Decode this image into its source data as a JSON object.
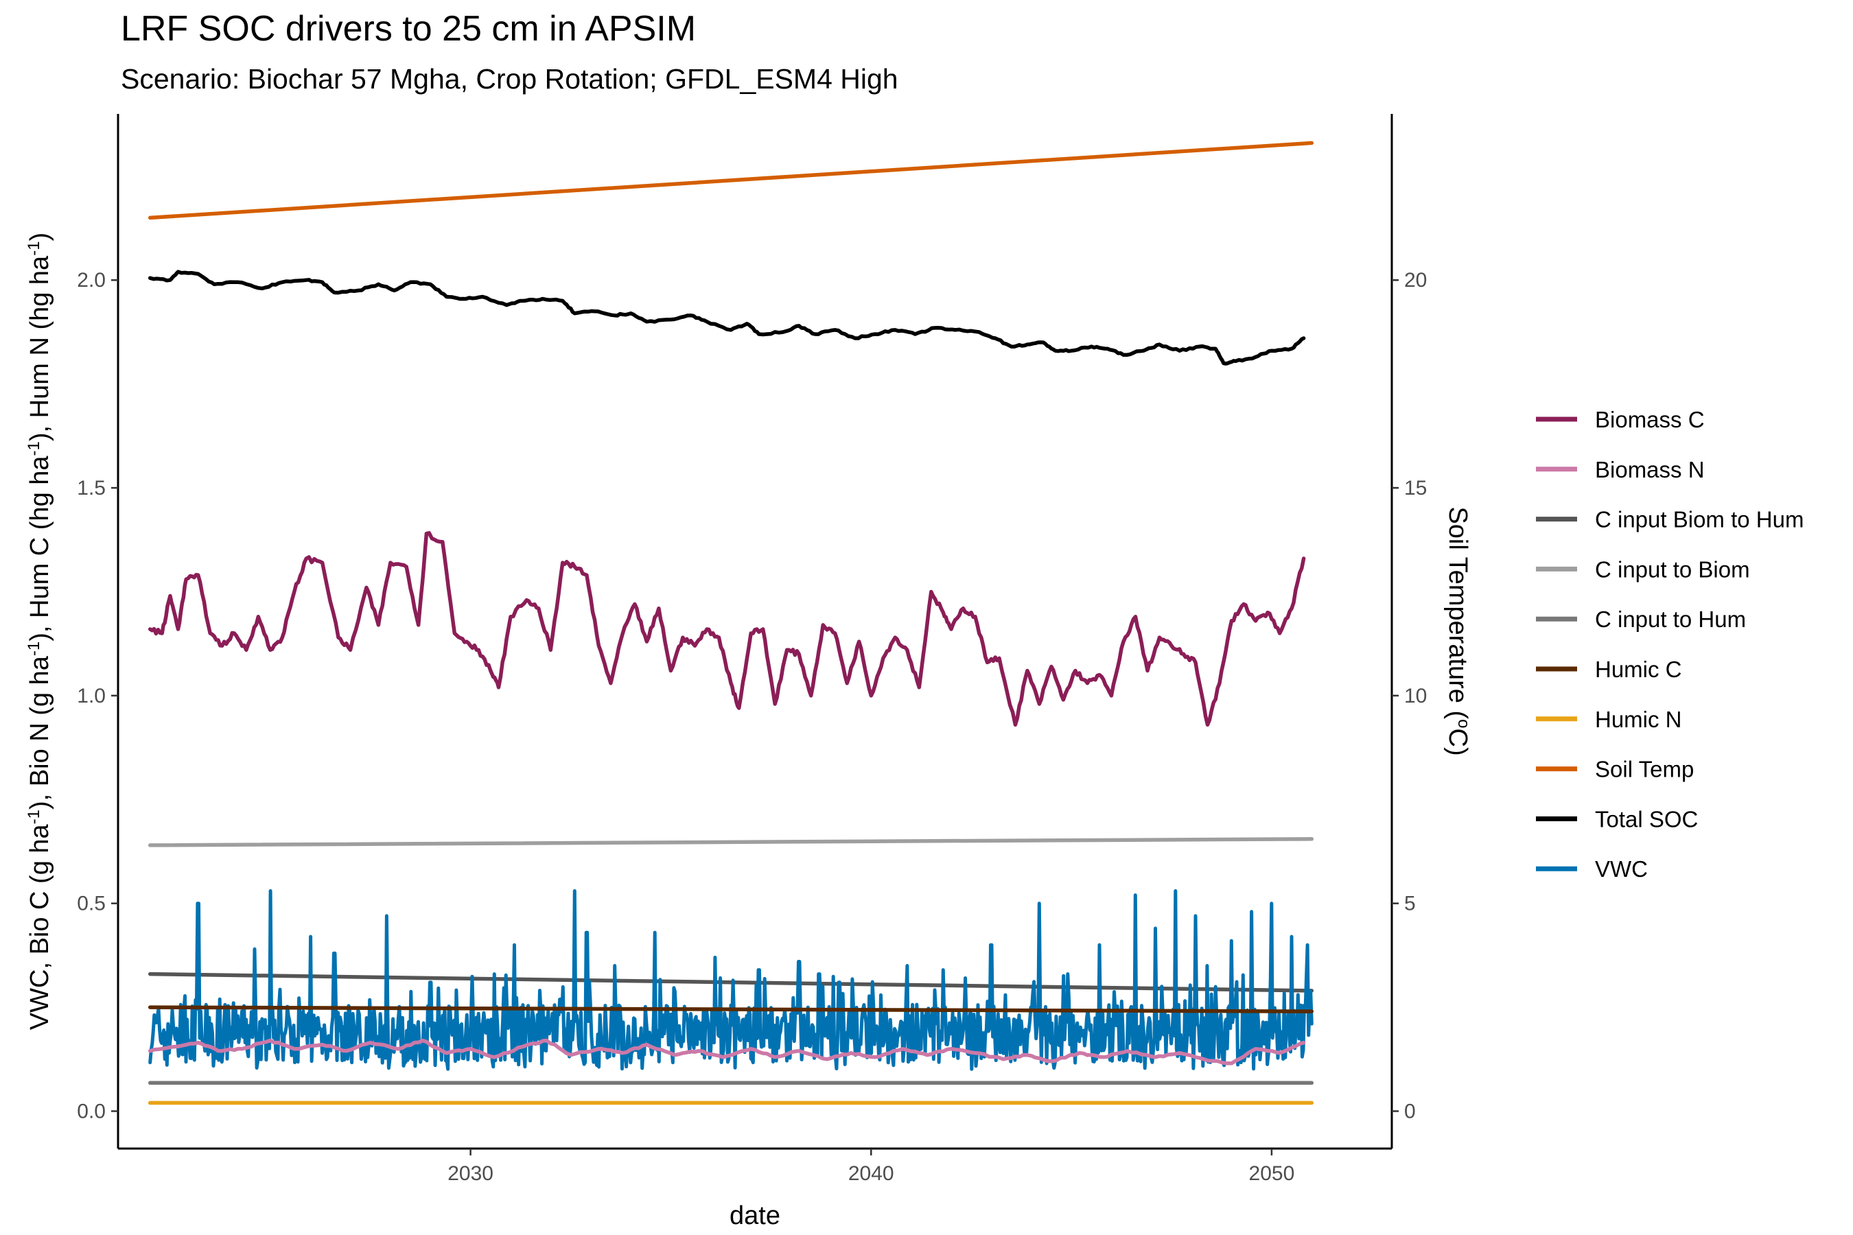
{
  "chart_data": {
    "type": "line",
    "title": "LRF SOC drivers to 25 cm in APSIM",
    "subtitle": "Scenario: Biochar 57 Mgha, Crop Rotation; GFDL_ESM4 High",
    "xlabel": "date",
    "ylabel_left": {
      "main": "VWC, Bio C (g ha",
      "parts": [
        "VWC, Bio C (g ha",
        "-1",
        "), Bio N (g ha",
        "-1",
        "), Hum C (hg ha",
        "-1",
        "), Hum N (hg ha",
        "-1",
        ")"
      ]
    },
    "ylabel_right": {
      "parts": [
        "Soil Temperature (",
        "o",
        "C)"
      ]
    },
    "xlim": [
      2021.2,
      2053.0
    ],
    "ylim_left": [
      -0.09,
      2.4
    ],
    "ylim_right": [
      -0.9,
      24.0
    ],
    "x_ticks": [
      2030,
      2040,
      2050
    ],
    "y_ticks_left": [
      "0.0",
      "0.5",
      "1.0",
      "1.5",
      "2.0"
    ],
    "y_ticks_right": [
      "0",
      "5",
      "10",
      "15",
      "20"
    ],
    "grid": false,
    "legend_position": "right",
    "series": [
      {
        "name": "Biomass C",
        "color": "#8B1E57",
        "axis": "left",
        "kind": "anchors",
        "points": [
          [
            2022.0,
            1.16
          ],
          [
            2022.3,
            1.15
          ],
          [
            2022.5,
            1.24
          ],
          [
            2022.7,
            1.16
          ],
          [
            2022.9,
            1.28
          ],
          [
            2023.2,
            1.29
          ],
          [
            2023.5,
            1.15
          ],
          [
            2023.8,
            1.12
          ],
          [
            2024.1,
            1.15
          ],
          [
            2024.4,
            1.11
          ],
          [
            2024.7,
            1.19
          ],
          [
            2025.0,
            1.11
          ],
          [
            2025.3,
            1.14
          ],
          [
            2025.6,
            1.25
          ],
          [
            2025.9,
            1.33
          ],
          [
            2026.3,
            1.32
          ],
          [
            2026.7,
            1.14
          ],
          [
            2027.0,
            1.11
          ],
          [
            2027.4,
            1.26
          ],
          [
            2027.7,
            1.17
          ],
          [
            2028.0,
            1.32
          ],
          [
            2028.4,
            1.31
          ],
          [
            2028.7,
            1.17
          ],
          [
            2028.9,
            1.39
          ],
          [
            2029.3,
            1.37
          ],
          [
            2029.6,
            1.15
          ],
          [
            2029.9,
            1.13
          ],
          [
            2030.2,
            1.11
          ],
          [
            2030.5,
            1.06
          ],
          [
            2030.7,
            1.02
          ],
          [
            2031.0,
            1.19
          ],
          [
            2031.4,
            1.23
          ],
          [
            2031.7,
            1.21
          ],
          [
            2032.0,
            1.11
          ],
          [
            2032.3,
            1.32
          ],
          [
            2032.6,
            1.31
          ],
          [
            2032.9,
            1.29
          ],
          [
            2033.2,
            1.12
          ],
          [
            2033.5,
            1.03
          ],
          [
            2033.8,
            1.15
          ],
          [
            2034.1,
            1.22
          ],
          [
            2034.4,
            1.13
          ],
          [
            2034.7,
            1.21
          ],
          [
            2035.0,
            1.06
          ],
          [
            2035.3,
            1.14
          ],
          [
            2035.6,
            1.12
          ],
          [
            2035.9,
            1.16
          ],
          [
            2036.2,
            1.14
          ],
          [
            2036.5,
            1.03
          ],
          [
            2036.7,
            0.97
          ],
          [
            2037.0,
            1.15
          ],
          [
            2037.3,
            1.16
          ],
          [
            2037.6,
            0.98
          ],
          [
            2037.9,
            1.11
          ],
          [
            2038.2,
            1.1
          ],
          [
            2038.5,
            1.0
          ],
          [
            2038.8,
            1.17
          ],
          [
            2039.1,
            1.15
          ],
          [
            2039.4,
            1.03
          ],
          [
            2039.7,
            1.13
          ],
          [
            2040.0,
            1.0
          ],
          [
            2040.3,
            1.09
          ],
          [
            2040.6,
            1.14
          ],
          [
            2040.9,
            1.11
          ],
          [
            2041.2,
            1.02
          ],
          [
            2041.5,
            1.25
          ],
          [
            2041.8,
            1.2
          ],
          [
            2042.0,
            1.16
          ],
          [
            2042.3,
            1.21
          ],
          [
            2042.6,
            1.19
          ],
          [
            2042.9,
            1.08
          ],
          [
            2043.2,
            1.09
          ],
          [
            2043.6,
            0.93
          ],
          [
            2043.9,
            1.06
          ],
          [
            2044.2,
            0.98
          ],
          [
            2044.5,
            1.07
          ],
          [
            2044.8,
            0.99
          ],
          [
            2045.1,
            1.06
          ],
          [
            2045.4,
            1.03
          ],
          [
            2045.7,
            1.05
          ],
          [
            2046.0,
            1.0
          ],
          [
            2046.3,
            1.13
          ],
          [
            2046.6,
            1.19
          ],
          [
            2046.9,
            1.06
          ],
          [
            2047.2,
            1.14
          ],
          [
            2047.5,
            1.12
          ],
          [
            2047.8,
            1.1
          ],
          [
            2048.1,
            1.08
          ],
          [
            2048.4,
            0.93
          ],
          [
            2048.7,
            1.03
          ],
          [
            2049.0,
            1.18
          ],
          [
            2049.3,
            1.22
          ],
          [
            2049.6,
            1.18
          ],
          [
            2049.9,
            1.2
          ],
          [
            2050.2,
            1.15
          ],
          [
            2050.5,
            1.21
          ],
          [
            2050.8,
            1.33
          ]
        ]
      },
      {
        "name": "Biomass N",
        "color": "#CC79A7",
        "axis": "left",
        "kind": "anchors",
        "points": [
          [
            2022.0,
            0.145
          ],
          [
            2022.6,
            0.155
          ],
          [
            2023.2,
            0.165
          ],
          [
            2023.7,
            0.145
          ],
          [
            2024.3,
            0.15
          ],
          [
            2025.0,
            0.17
          ],
          [
            2025.6,
            0.15
          ],
          [
            2026.3,
            0.16
          ],
          [
            2026.9,
            0.145
          ],
          [
            2027.5,
            0.165
          ],
          [
            2028.2,
            0.15
          ],
          [
            2028.8,
            0.17
          ],
          [
            2029.4,
            0.14
          ],
          [
            2030.0,
            0.15
          ],
          [
            2030.6,
            0.13
          ],
          [
            2031.3,
            0.155
          ],
          [
            2031.9,
            0.17
          ],
          [
            2032.5,
            0.135
          ],
          [
            2033.2,
            0.15
          ],
          [
            2033.8,
            0.14
          ],
          [
            2034.4,
            0.16
          ],
          [
            2035.1,
            0.135
          ],
          [
            2035.7,
            0.145
          ],
          [
            2036.3,
            0.13
          ],
          [
            2037.0,
            0.15
          ],
          [
            2037.6,
            0.13
          ],
          [
            2038.2,
            0.145
          ],
          [
            2038.9,
            0.125
          ],
          [
            2039.5,
            0.14
          ],
          [
            2040.1,
            0.13
          ],
          [
            2040.8,
            0.15
          ],
          [
            2041.4,
            0.135
          ],
          [
            2042.0,
            0.15
          ],
          [
            2042.6,
            0.14
          ],
          [
            2043.3,
            0.125
          ],
          [
            2043.9,
            0.135
          ],
          [
            2044.5,
            0.12
          ],
          [
            2045.2,
            0.14
          ],
          [
            2045.8,
            0.13
          ],
          [
            2046.4,
            0.145
          ],
          [
            2047.1,
            0.13
          ],
          [
            2047.7,
            0.14
          ],
          [
            2048.3,
            0.125
          ],
          [
            2049.0,
            0.115
          ],
          [
            2049.6,
            0.15
          ],
          [
            2050.2,
            0.14
          ],
          [
            2050.8,
            0.165
          ]
        ]
      },
      {
        "name": "C input Biom to Hum",
        "color": "#555555",
        "axis": "left",
        "kind": "linear",
        "start": 0.33,
        "end": 0.29
      },
      {
        "name": "C input to Biom",
        "color": "#9E9E9E",
        "axis": "left",
        "kind": "linear",
        "start": 0.64,
        "end": 0.655
      },
      {
        "name": "C input to Hum",
        "color": "#777777",
        "axis": "left",
        "kind": "linear",
        "start": 0.068,
        "end": 0.068
      },
      {
        "name": "Humic C",
        "color": "#5A2A00",
        "axis": "left",
        "kind": "linear",
        "start": 0.25,
        "end": 0.24
      },
      {
        "name": "Humic N",
        "color": "#E8A317",
        "axis": "left",
        "kind": "linear",
        "start": 0.02,
        "end": 0.02
      },
      {
        "name": "Soil Temp",
        "color": "#D45E00",
        "axis": "right",
        "kind": "linear",
        "start": 21.5,
        "end": 23.3
      },
      {
        "name": "Total SOC",
        "color": "#000000",
        "axis": "left",
        "kind": "anchors",
        "points": [
          [
            2022.0,
            2.005
          ],
          [
            2022.5,
            2.0
          ],
          [
            2022.7,
            2.02
          ],
          [
            2023.2,
            2.015
          ],
          [
            2023.6,
            1.99
          ],
          [
            2024.2,
            1.995
          ],
          [
            2024.8,
            1.98
          ],
          [
            2025.3,
            1.995
          ],
          [
            2025.9,
            2.0
          ],
          [
            2026.3,
            1.995
          ],
          [
            2026.6,
            1.97
          ],
          [
            2027.2,
            1.975
          ],
          [
            2027.7,
            1.99
          ],
          [
            2028.1,
            1.975
          ],
          [
            2028.5,
            1.995
          ],
          [
            2029.0,
            1.99
          ],
          [
            2029.4,
            1.96
          ],
          [
            2029.8,
            1.955
          ],
          [
            2030.3,
            1.96
          ],
          [
            2030.9,
            1.94
          ],
          [
            2031.3,
            1.95
          ],
          [
            2031.8,
            1.955
          ],
          [
            2032.3,
            1.95
          ],
          [
            2032.6,
            1.92
          ],
          [
            2033.1,
            1.925
          ],
          [
            2033.6,
            1.915
          ],
          [
            2034.0,
            1.92
          ],
          [
            2034.4,
            1.9
          ],
          [
            2035.0,
            1.905
          ],
          [
            2035.5,
            1.915
          ],
          [
            2035.9,
            1.9
          ],
          [
            2036.5,
            1.88
          ],
          [
            2036.9,
            1.895
          ],
          [
            2037.2,
            1.87
          ],
          [
            2037.8,
            1.875
          ],
          [
            2038.2,
            1.89
          ],
          [
            2038.6,
            1.87
          ],
          [
            2039.1,
            1.88
          ],
          [
            2039.6,
            1.86
          ],
          [
            2040.1,
            1.87
          ],
          [
            2040.6,
            1.88
          ],
          [
            2041.1,
            1.87
          ],
          [
            2041.6,
            1.885
          ],
          [
            2042.1,
            1.88
          ],
          [
            2042.7,
            1.875
          ],
          [
            2043.1,
            1.86
          ],
          [
            2043.5,
            1.84
          ],
          [
            2043.9,
            1.845
          ],
          [
            2044.3,
            1.85
          ],
          [
            2044.6,
            1.83
          ],
          [
            2045.0,
            1.83
          ],
          [
            2045.5,
            1.84
          ],
          [
            2045.9,
            1.835
          ],
          [
            2046.3,
            1.82
          ],
          [
            2046.8,
            1.83
          ],
          [
            2047.2,
            1.845
          ],
          [
            2047.7,
            1.83
          ],
          [
            2048.2,
            1.84
          ],
          [
            2048.6,
            1.835
          ],
          [
            2048.8,
            1.8
          ],
          [
            2049.1,
            1.805
          ],
          [
            2049.6,
            1.815
          ],
          [
            2050.0,
            1.83
          ],
          [
            2050.5,
            1.835
          ],
          [
            2050.8,
            1.86
          ]
        ]
      },
      {
        "name": "VWC",
        "color": "#0072B2",
        "axis": "left",
        "kind": "noisy",
        "base": 0.18,
        "spread": 0.07,
        "spikes": [
          [
            2023.2,
            0.5
          ],
          [
            2025.0,
            0.53
          ],
          [
            2024.6,
            0.39
          ],
          [
            2026.0,
            0.42
          ],
          [
            2026.6,
            0.38
          ],
          [
            2027.9,
            0.47
          ],
          [
            2029.0,
            0.31
          ],
          [
            2030.6,
            0.33
          ],
          [
            2031.1,
            0.4
          ],
          [
            2032.6,
            0.53
          ],
          [
            2032.9,
            0.43
          ],
          [
            2033.6,
            0.35
          ],
          [
            2034.6,
            0.43
          ],
          [
            2036.1,
            0.37
          ],
          [
            2037.2,
            0.34
          ],
          [
            2038.2,
            0.36
          ],
          [
            2038.7,
            0.33
          ],
          [
            2039.2,
            0.31
          ],
          [
            2040.9,
            0.35
          ],
          [
            2041.8,
            0.34
          ],
          [
            2043.0,
            0.4
          ],
          [
            2044.2,
            0.5
          ],
          [
            2044.9,
            0.33
          ],
          [
            2045.7,
            0.4
          ],
          [
            2046.6,
            0.52
          ],
          [
            2047.1,
            0.44
          ],
          [
            2047.6,
            0.53
          ],
          [
            2048.1,
            0.47
          ],
          [
            2048.4,
            0.35
          ],
          [
            2049.0,
            0.41
          ],
          [
            2049.5,
            0.48
          ],
          [
            2050.0,
            0.5
          ],
          [
            2050.5,
            0.42
          ],
          [
            2050.9,
            0.4
          ]
        ]
      }
    ]
  }
}
